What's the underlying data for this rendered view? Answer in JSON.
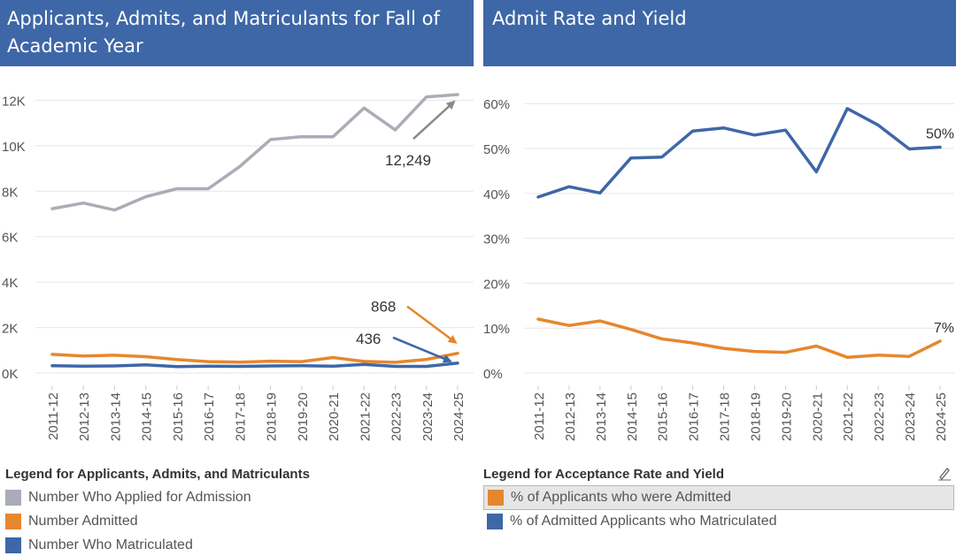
{
  "left_panel": {
    "title": "Applicants, Admits, and Matriculants for Fall of Academic Year",
    "legend_title": "Legend for Applicants, Admits, and Matriculants",
    "legend_items": [
      "Number Who Applied for Admission",
      "Number Admitted",
      "Number Who Matriculated"
    ]
  },
  "right_panel": {
    "title": "Admit Rate and Yield",
    "legend_title": "Legend for Acceptance Rate and Yield",
    "legend_items": [
      "% of Applicants who were Admitted",
      "% of Admitted Applicants who Matriculated"
    ]
  },
  "colors": {
    "header": "#3e67a7",
    "applied": "#a8adb7",
    "admitted": "#e6872d",
    "matriculated": "#3e67a7",
    "arrow_gray": "#8a8a8a",
    "grid": "#e6e6e6"
  },
  "icons": {
    "edit": "pencil-signature-icon"
  },
  "chart_data": [
    {
      "type": "line",
      "categories": [
        "2011-12",
        "2012-13",
        "2013-14",
        "2014-15",
        "2015-16",
        "2016-17",
        "2017-18",
        "2018-19",
        "2019-20",
        "2020-21",
        "2021-22",
        "2022-23",
        "2023-24",
        "2024-25"
      ],
      "yticks": [
        0,
        2000,
        4000,
        6000,
        8000,
        10000,
        12000
      ],
      "ytick_labels": [
        "0K",
        "2K",
        "4K",
        "6K",
        "8K",
        "10K",
        "12K"
      ],
      "ylim": [
        0,
        12600
      ],
      "series": [
        {
          "name": "Number Who Applied for Admission",
          "color": "#a8adb7",
          "values": [
            7230,
            7480,
            7170,
            7760,
            8110,
            8110,
            9070,
            10270,
            10400,
            10390,
            11660,
            10700,
            12150,
            12249
          ]
        },
        {
          "name": "Number Admitted",
          "color": "#e6872d",
          "values": [
            820,
            750,
            780,
            720,
            590,
            500,
            480,
            520,
            500,
            680,
            510,
            470,
            600,
            868
          ]
        },
        {
          "name": "Number Who Matriculated",
          "color": "#3e67a7",
          "values": [
            320,
            300,
            310,
            360,
            280,
            300,
            290,
            310,
            320,
            300,
            380,
            290,
            290,
            436
          ]
        }
      ],
      "annotations": [
        {
          "text": "12,249",
          "series": 0
        },
        {
          "text": "868",
          "series": 1
        },
        {
          "text": "436",
          "series": 2
        }
      ]
    },
    {
      "type": "line",
      "categories": [
        "2011-12",
        "2012-13",
        "2013-14",
        "2014-15",
        "2015-16",
        "2016-17",
        "2017-18",
        "2018-19",
        "2019-20",
        "2020-21",
        "2021-22",
        "2022-23",
        "2023-24",
        "2024-25"
      ],
      "yticks": [
        0,
        10,
        20,
        30,
        40,
        50,
        60
      ],
      "ytick_labels": [
        "0%",
        "10%",
        "20%",
        "30%",
        "40%",
        "50%",
        "60%"
      ],
      "ylim": [
        0,
        63
      ],
      "series": [
        {
          "name": "% of Admitted Applicants who Matriculated",
          "color": "#3e67a7",
          "values": [
            39.2,
            41.5,
            40.1,
            47.9,
            48.1,
            53.9,
            54.6,
            53.0,
            54.1,
            44.8,
            58.9,
            55.2,
            49.9,
            50.3
          ]
        },
        {
          "name": "% of Applicants who were Admitted",
          "color": "#e6872d",
          "values": [
            12.0,
            10.6,
            11.6,
            9.7,
            7.6,
            6.7,
            5.5,
            4.8,
            4.6,
            6.0,
            3.5,
            4.0,
            3.7,
            7.1
          ]
        }
      ],
      "end_labels": [
        "50%",
        "7%"
      ]
    }
  ]
}
